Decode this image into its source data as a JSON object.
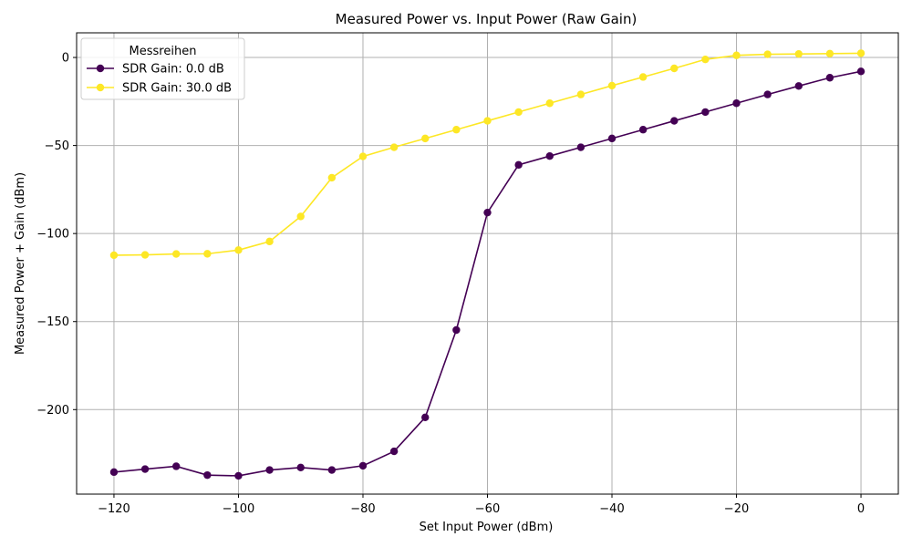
{
  "chart_data": {
    "type": "line",
    "title": "Measured Power vs. Input Power (Raw Gain)",
    "xlabel": "Set Input Power (dBm)",
    "ylabel": "Measured Power + Gain (dBm)",
    "xlim": [
      -126,
      6
    ],
    "ylim": [
      -248,
      14
    ],
    "xticks": [
      -120,
      -100,
      -80,
      -60,
      -40,
      -20,
      0
    ],
    "yticks": [
      0,
      -50,
      -100,
      -150,
      -200
    ],
    "grid": true,
    "legend": {
      "title": "Messreihen",
      "placement": "top-left"
    },
    "x": [
      -120,
      -115,
      -110,
      -105,
      -100,
      -95,
      -90,
      -85,
      -80,
      -75,
      -70,
      -65,
      -60,
      -55,
      -50,
      -45,
      -40,
      -35,
      -30,
      -25,
      -20,
      -15,
      -10,
      -5,
      0
    ],
    "series": [
      {
        "name": "SDR Gain: 0.0 dB",
        "color": "#440154",
        "values": [
          -235.5,
          -233.8,
          -232.2,
          -237.2,
          -237.6,
          -234.3,
          -232.9,
          -234.3,
          -231.9,
          -223.7,
          -204.4,
          -154.8,
          -88.1,
          -61.0,
          -56.0,
          -51.0,
          -46.0,
          -41.0,
          -36.0,
          -31.0,
          -26.0,
          -21.0,
          -16.2,
          -11.5,
          -7.9
        ]
      },
      {
        "name": "SDR Gain: 30.0 dB",
        "color": "#fde725",
        "values": [
          -112.3,
          -112.1,
          -111.6,
          -111.5,
          -109.4,
          -104.5,
          -90.3,
          -68.3,
          -56.2,
          -51.0,
          -46.0,
          -41.0,
          -36.0,
          -31.0,
          -26.0,
          -21.0,
          -16.0,
          -11.1,
          -6.2,
          -1.1,
          1.2,
          1.8,
          2.0,
          2.2,
          2.4
        ]
      }
    ]
  }
}
